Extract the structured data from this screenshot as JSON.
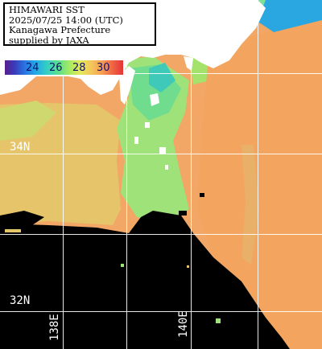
{
  "title": {
    "line1": "HIMAWARI SST",
    "line2": "2025/07/25 14:00 (UTC)",
    "line3": "Kanagawa Prefecture",
    "line4": "supplied by JAXA"
  },
  "legend": {
    "ticks": [
      "24",
      "26",
      "28",
      "30"
    ],
    "colors": [
      "#5a1e8c",
      "#2a6fe0",
      "#35d0c0",
      "#a8ea62",
      "#f4c65a",
      "#f06a45",
      "#e33536"
    ]
  },
  "grid": {
    "lat_labels": [
      "34N",
      "32N"
    ],
    "lon_labels": [
      "138E",
      "140E"
    ]
  },
  "colors": {
    "land": "#ffffff",
    "no_data": "#000000",
    "warm_sst": "#f4a860",
    "mid_sst": "#d8d870",
    "cool_sst": "#8fe07a",
    "cold_sst": "#35d0c0",
    "grid": "#ffffff"
  }
}
